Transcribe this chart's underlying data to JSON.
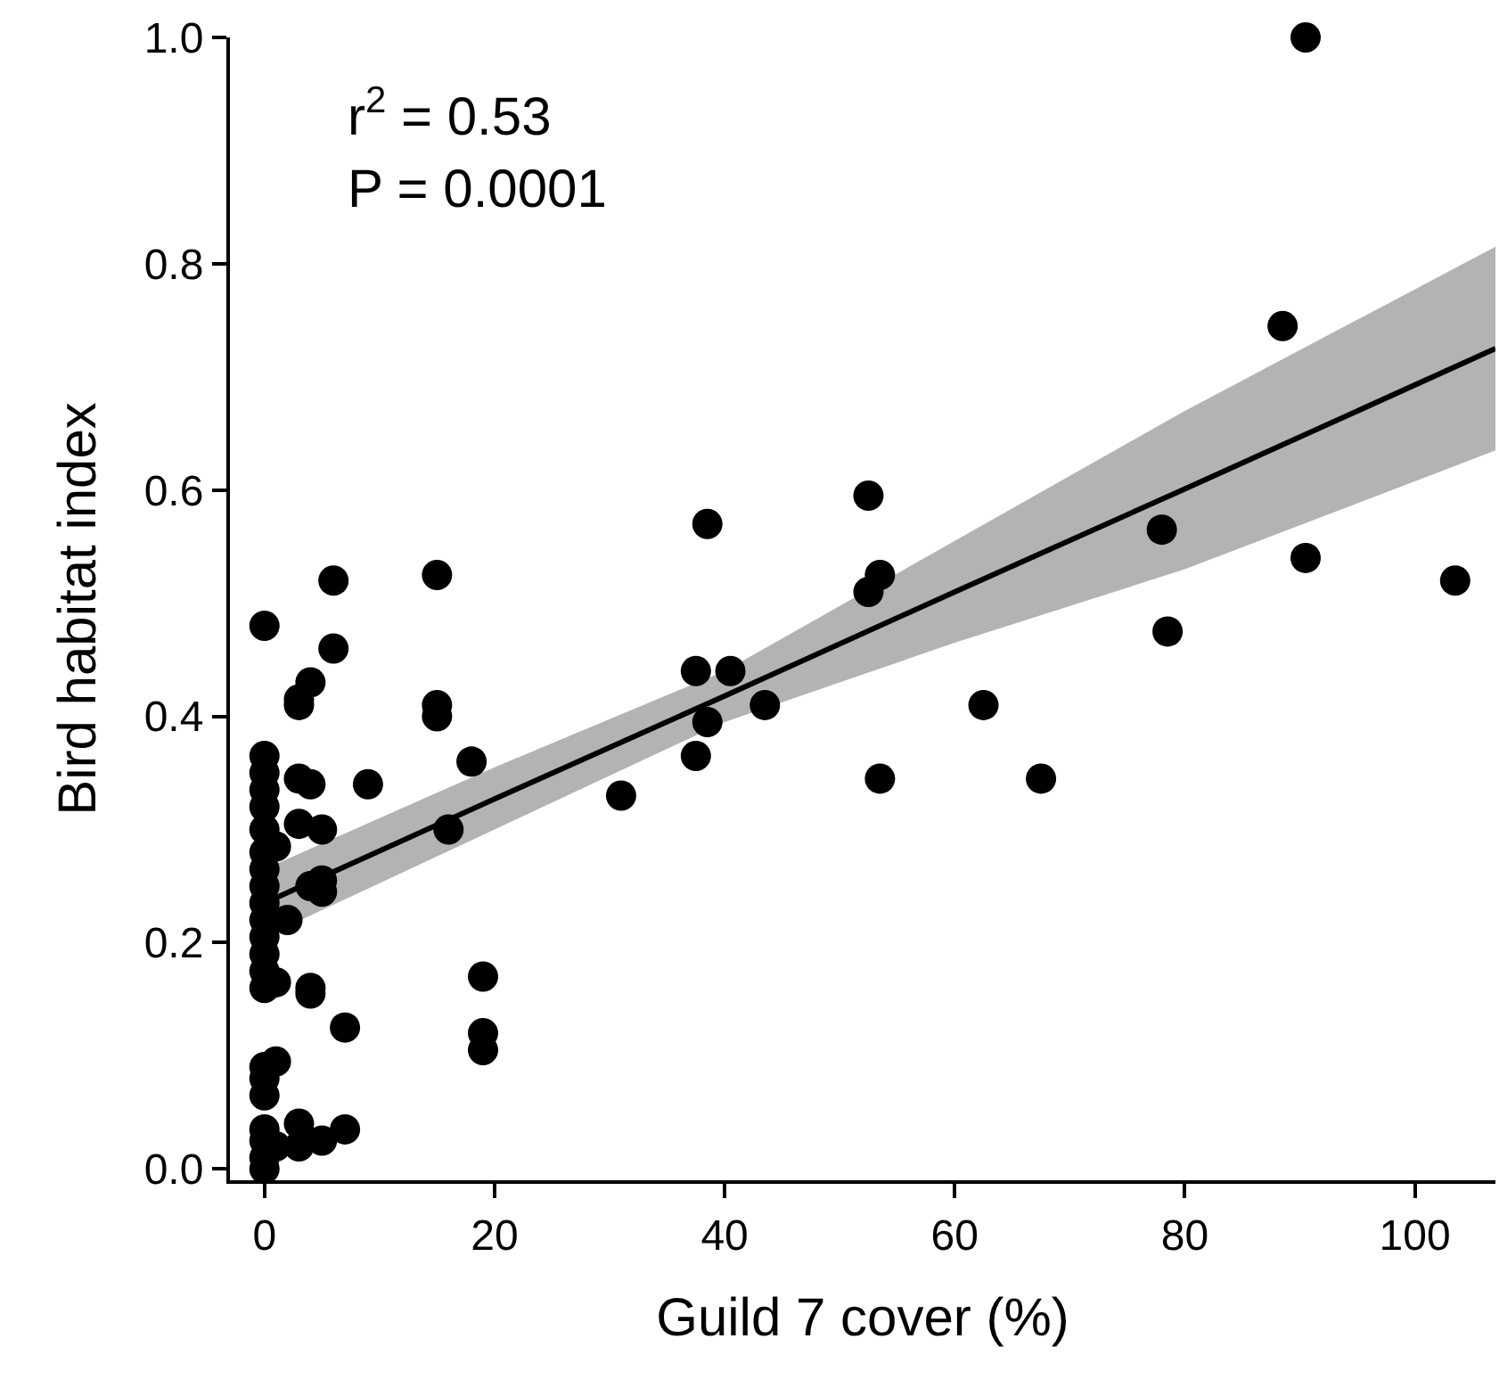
{
  "chart_data": {
    "type": "scatter",
    "xlabel": "Guild 7 cover (%)",
    "ylabel": "Bird habitat index",
    "annotations": [
      "r$^{2}$ = 0.53",
      "P = 0.0001"
    ],
    "xlim": [
      -3,
      107
    ],
    "xticks": [
      0,
      20,
      40,
      60,
      80,
      100
    ],
    "ylim": [
      -0.01,
      1.0
    ],
    "yticks": [
      {
        "value": 0,
        "label": "0.0"
      },
      {
        "value": 0.2,
        "label": "0.2"
      },
      {
        "value": 0.4,
        "label": "0.4"
      },
      {
        "value": 0.6,
        "label": "0.6"
      },
      {
        "value": 0.8,
        "label": "0.8"
      },
      {
        "value": 1.0,
        "label": "1.0"
      }
    ],
    "series": [
      {
        "color": "#000000",
        "marker": "circle",
        "x": [
          0,
          0,
          0,
          0,
          0,
          0,
          0,
          0,
          0,
          0,
          0,
          0,
          0,
          0,
          0,
          0,
          0,
          0,
          0,
          0,
          0,
          0,
          1,
          1,
          1,
          1,
          2,
          3,
          3,
          3,
          3,
          3,
          3,
          4,
          4,
          4,
          4,
          4,
          5,
          5,
          5,
          5,
          6,
          6,
          7,
          7,
          9,
          15,
          15,
          15,
          16,
          18,
          19,
          19,
          19,
          31,
          37.5,
          37.5,
          38.5,
          38.5,
          40.5,
          43.5,
          52.5,
          52.5,
          53.5,
          53.5,
          62.5,
          67.5,
          78,
          78.5,
          88.5,
          90.5,
          90.5,
          103.5
        ],
        "values": [
          0.48,
          0.365,
          0.35,
          0.335,
          0.32,
          0.3,
          0.28,
          0.265,
          0.25,
          0.235,
          0.22,
          0.205,
          0.19,
          0.175,
          0.16,
          0.09,
          0.08,
          0.065,
          0.035,
          0.025,
          0.01,
          0.0,
          0.285,
          0.165,
          0.095,
          0.02,
          0.22,
          0.41,
          0.415,
          0.345,
          0.305,
          0.04,
          0.02,
          0.43,
          0.34,
          0.25,
          0.16,
          0.155,
          0.3,
          0.255,
          0.245,
          0.025,
          0.52,
          0.46,
          0.125,
          0.035,
          0.34,
          0.525,
          0.41,
          0.4,
          0.3,
          0.36,
          0.17,
          0.12,
          0.105,
          0.33,
          0.44,
          0.365,
          0.57,
          0.395,
          0.44,
          0.41,
          0.595,
          0.51,
          0.525,
          0.345,
          0.41,
          0.345,
          0.565,
          0.475,
          0.745,
          1.0,
          0.54,
          0.52
        ]
      },
      {
        "type": "line",
        "color": "#000000",
        "line_style": "solid",
        "marker": "none",
        "x": [
          0,
          20,
          40,
          60,
          80,
          107
        ],
        "values": [
          0.235,
          0.327,
          0.418,
          0.51,
          0.601,
          0.725
        ],
        "lower": [
          0.205,
          0.3,
          0.395,
          0.465,
          0.53,
          0.635
        ],
        "upper": [
          0.265,
          0.355,
          0.44,
          0.555,
          0.67,
          0.815
        ]
      }
    ]
  }
}
